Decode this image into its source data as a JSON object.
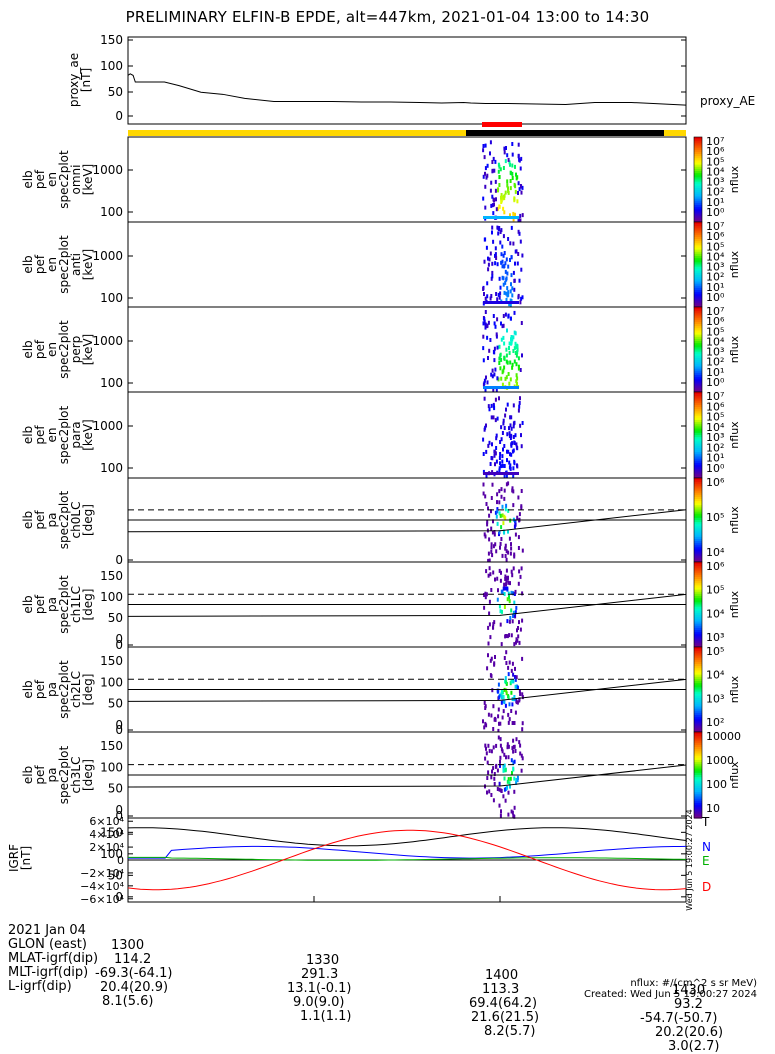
{
  "title": "PRELIMINARY ELFIN-B EPDE, alt=447km, 2021-01-04 13:00 to 14:30",
  "colors": {
    "orbit_day": "#ffd700",
    "orbit_night": "#000000",
    "science_zone": "#ff0000",
    "t_comp": "#000000",
    "n_comp": "#0000ff",
    "e_comp": "#00b000",
    "d_comp": "#ff0000"
  },
  "chart_data": [
    {
      "type": "line",
      "name": "proxy_ae",
      "ylabel_lines": [
        "proxy_ae",
        "[nT]"
      ],
      "legend": "proxy_AE",
      "ylim": [
        -10,
        160
      ],
      "yticks": [
        "150",
        "100",
        "50",
        "0"
      ],
      "x": [
        0,
        3,
        7,
        10,
        20,
        30,
        50,
        70,
        100,
        130,
        160,
        200,
        240,
        280,
        320,
        360,
        400,
        430,
        460,
        470,
        490,
        520,
        560,
        600,
        640,
        690,
        720,
        765
      ],
      "y": [
        85,
        88,
        85,
        72,
        72,
        72,
        72,
        65,
        52,
        48,
        40,
        34,
        34,
        34,
        33,
        33,
        32,
        31,
        32,
        31,
        30,
        30,
        29,
        28,
        32,
        32,
        30,
        27
      ]
    },
    {
      "type": "heatmap",
      "name": "omni",
      "ylabel_lines": [
        "elb",
        "pef",
        "en",
        "spec2plot",
        "omni",
        "[keV]"
      ],
      "yticks": [
        "1000",
        "100"
      ],
      "cbar_label": "nflux",
      "cbar_ticks": [
        "10⁷",
        "10⁶",
        "10⁵",
        "10⁴",
        "10³",
        "10²",
        "10¹",
        "10⁰"
      ]
    },
    {
      "type": "heatmap",
      "name": "anti",
      "ylabel_lines": [
        "elb",
        "pef",
        "en",
        "spec2plot",
        "anti",
        "[keV]"
      ],
      "yticks": [
        "1000",
        "100"
      ],
      "cbar_label": "nflux",
      "cbar_ticks": [
        "10⁷",
        "10⁶",
        "10⁵",
        "10⁴",
        "10³",
        "10²",
        "10¹",
        "10⁰"
      ]
    },
    {
      "type": "heatmap",
      "name": "perp",
      "ylabel_lines": [
        "elb",
        "pef",
        "en",
        "spec2plot",
        "perp",
        "[keV]"
      ],
      "yticks": [
        "1000",
        "100"
      ],
      "cbar_label": "nflux",
      "cbar_ticks": [
        "10⁷",
        "10⁶",
        "10⁵",
        "10⁴",
        "10³",
        "10²",
        "10¹",
        "10⁰"
      ]
    },
    {
      "type": "heatmap",
      "name": "para",
      "ylabel_lines": [
        "elb",
        "pef",
        "en",
        "spec2plot",
        "para",
        "[keV]"
      ],
      "yticks": [
        "1000",
        "100"
      ],
      "cbar_label": "nflux",
      "cbar_ticks": [
        "10⁷",
        "10⁶",
        "10⁵",
        "10⁴",
        "10³",
        "10²",
        "10¹",
        "10⁰"
      ]
    },
    {
      "type": "heatmap",
      "name": "ch0LC",
      "ylabel_lines": [
        "elb",
        "pef",
        "pa",
        "spec2plot",
        "ch0LC",
        "[deg]"
      ],
      "yticks": [
        "150",
        "100",
        "50",
        "0"
      ],
      "cbar_label": "nflux",
      "cbar_ticks": [
        "10⁶",
        "10⁵",
        "10⁴"
      ]
    },
    {
      "type": "heatmap",
      "name": "ch1LC",
      "ylabel_lines": [
        "elb",
        "pef",
        "pa",
        "spec2plot",
        "ch1LC",
        "[deg]"
      ],
      "yticks": [
        "150",
        "100",
        "50",
        "0"
      ],
      "cbar_label": "nflux",
      "cbar_ticks": [
        "10⁶",
        "10⁵",
        "10⁴",
        "10³"
      ]
    },
    {
      "type": "heatmap",
      "name": "ch2LC",
      "ylabel_lines": [
        "elb",
        "pef",
        "pa",
        "spec2plot",
        "ch2LC",
        "[deg]"
      ],
      "yticks": [
        "150",
        "100",
        "50",
        "0"
      ],
      "cbar_label": "nflux",
      "cbar_ticks": [
        "10⁵",
        "10⁴",
        "10³",
        "10²"
      ]
    },
    {
      "type": "heatmap",
      "name": "ch3LC",
      "ylabel_lines": [
        "elb",
        "pef",
        "pa",
        "spec2plot",
        "ch3LC",
        "[deg]"
      ],
      "yticks": [
        "150",
        "100",
        "50",
        "0"
      ],
      "cbar_label": "nflux",
      "cbar_ticks": [
        "10000",
        "1000",
        "100",
        "10"
      ]
    },
    {
      "type": "line",
      "name": "IGRF",
      "ylabel_lines": [
        "IGRF",
        "[nT]"
      ],
      "yticks": [
        "6×10⁴",
        "4×10⁴",
        "2×10⁴",
        "0",
        "−2×10⁴",
        "−4×10⁴",
        "−6×10⁴"
      ],
      "ylim": [
        -65000,
        65000
      ],
      "legend": [
        "T",
        "N",
        "E",
        "D"
      ],
      "side_text": "Wed Jun  5 19:00:27 2024"
    }
  ],
  "footer": {
    "rows": [
      [
        "2021 Jan 04",
        "1300",
        "1330",
        "1400",
        "1430"
      ],
      [
        "GLON (east)",
        "114.2",
        "291.3",
        "113.3",
        "93.2"
      ],
      [
        "MLAT-igrf(dip)",
        "-69.3(-64.1)",
        "13.1(-0.1)",
        "69.4(64.2)",
        "-54.7(-50.7)"
      ],
      [
        "MLT-igrf(dip)",
        "20.4(20.9)",
        "9.0(9.0)",
        "21.6(21.5)",
        "20.2(20.6)"
      ],
      [
        "L-igrf(dip)",
        "8.1(5.6)",
        "1.1(1.1)",
        "8.2(5.7)",
        "3.0(2.7)"
      ]
    ],
    "units_note": "nflux: #/(cm^2 s sr MeV)",
    "created": "Created: Wed Jun  5 19:00:27 2024"
  }
}
